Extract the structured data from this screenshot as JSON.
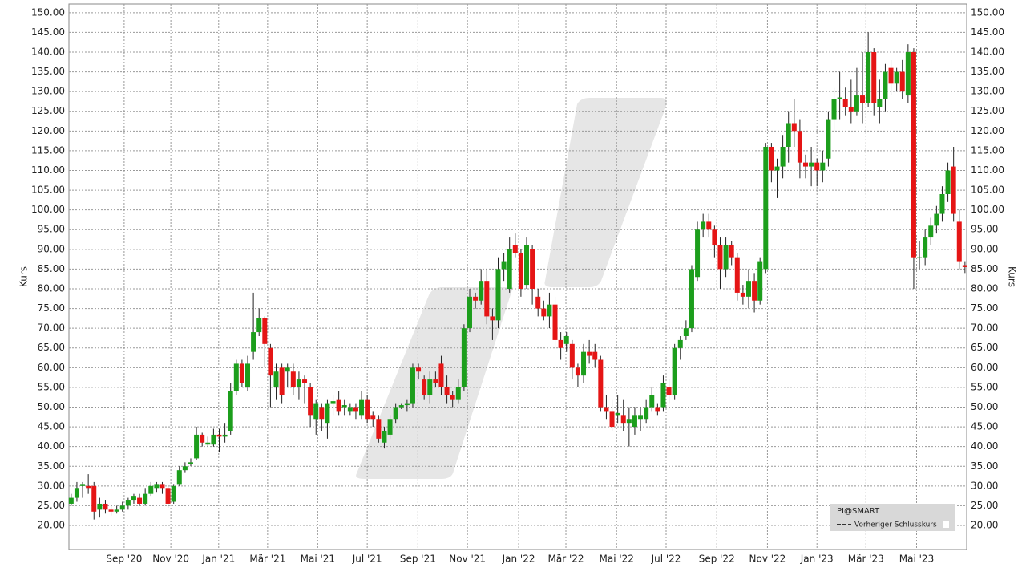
{
  "chart_data": {
    "type": "candlestick",
    "y_label": "Kurs",
    "legend_title": "PI@SMART",
    "legend_item": "Vorheriger Schlusskurs",
    "up_color": "#1c9e1c",
    "down_color": "#e51515",
    "grid": true,
    "xlim": [
      -0.4,
      157.3
    ],
    "ylim": [
      13.9,
      152.2
    ],
    "xticks": [
      {
        "value": 9.3,
        "label": "Sep '20"
      },
      {
        "value": 17.5,
        "label": "Nov '20"
      },
      {
        "value": 25.9,
        "label": "Jan '21"
      },
      {
        "value": 34.5,
        "label": "Mär '21"
      },
      {
        "value": 43.3,
        "label": "Mai '21"
      },
      {
        "value": 52.0,
        "label": "Jul '21"
      },
      {
        "value": 60.9,
        "label": "Sep '21"
      },
      {
        "value": 69.6,
        "label": "Nov '21"
      },
      {
        "value": 78.6,
        "label": "Jan '22"
      },
      {
        "value": 86.9,
        "label": "Mär '22"
      },
      {
        "value": 95.8,
        "label": "Mai '22"
      },
      {
        "value": 104.5,
        "label": "Jul '22"
      },
      {
        "value": 113.4,
        "label": "Sep '22"
      },
      {
        "value": 122.3,
        "label": "Nov '22"
      },
      {
        "value": 131.0,
        "label": "Jan '23"
      },
      {
        "value": 139.6,
        "label": "Mär '23"
      },
      {
        "value": 148.5,
        "label": "Mai '23"
      }
    ],
    "yticks": [
      {
        "value": 20,
        "label": "20.00"
      },
      {
        "value": 25,
        "label": "25.00"
      },
      {
        "value": 30,
        "label": "30.00"
      },
      {
        "value": 35,
        "label": "35.00"
      },
      {
        "value": 40,
        "label": "40.00"
      },
      {
        "value": 45,
        "label": "45.00"
      },
      {
        "value": 50,
        "label": "50.00"
      },
      {
        "value": 55,
        "label": "55.00"
      },
      {
        "value": 60,
        "label": "60.00"
      },
      {
        "value": 65,
        "label": "65.00"
      },
      {
        "value": 70,
        "label": "70.00"
      },
      {
        "value": 75,
        "label": "75.00"
      },
      {
        "value": 80,
        "label": "80.00"
      },
      {
        "value": 85,
        "label": "85.00"
      },
      {
        "value": 90,
        "label": "90.00"
      },
      {
        "value": 95,
        "label": "95.00"
      },
      {
        "value": 100,
        "label": "100.00"
      },
      {
        "value": 105,
        "label": "105.00"
      },
      {
        "value": 110,
        "label": "110.00"
      },
      {
        "value": 115,
        "label": "115.00"
      },
      {
        "value": 120,
        "label": "120.00"
      },
      {
        "value": 125,
        "label": "125.00"
      },
      {
        "value": 130,
        "label": "130.00"
      },
      {
        "value": 135,
        "label": "135.00"
      },
      {
        "value": 140,
        "label": "140.00"
      },
      {
        "value": 145,
        "label": "145.00"
      },
      {
        "value": 150,
        "label": "150.00"
      }
    ],
    "x": [
      0,
      1,
      2,
      3,
      4,
      5,
      6,
      7,
      8,
      9,
      10,
      11,
      12,
      13,
      14,
      15,
      16,
      17,
      18,
      19,
      20,
      21,
      22,
      23,
      24,
      25,
      26,
      27,
      28,
      29,
      30,
      31,
      32,
      33,
      34,
      35,
      36,
      37,
      38,
      39,
      40,
      41,
      42,
      43,
      44,
      45,
      46,
      47,
      48,
      49,
      50,
      51,
      52,
      53,
      54,
      55,
      56,
      57,
      58,
      59,
      60,
      61,
      62,
      63,
      64,
      65,
      66,
      67,
      68,
      69,
      70,
      71,
      72,
      73,
      74,
      75,
      76,
      77,
      78,
      79,
      80,
      81,
      82,
      83,
      84,
      85,
      86,
      87,
      88,
      89,
      90,
      91,
      92,
      93,
      94,
      95,
      96,
      97,
      98,
      99,
      100,
      101,
      102,
      103,
      104,
      105,
      106,
      107,
      108,
      109,
      110,
      111,
      112,
      113,
      114,
      115,
      116,
      117,
      118,
      119,
      120,
      121,
      122,
      123,
      124,
      125,
      126,
      127,
      128,
      129,
      130,
      131,
      132,
      133,
      134,
      135,
      136,
      137,
      138,
      139,
      140,
      141,
      142,
      143,
      144,
      145,
      146,
      147,
      148,
      149,
      150,
      151,
      152,
      153,
      154,
      155,
      156,
      157
    ],
    "open": [
      25.5,
      27,
      30,
      30,
      30,
      24,
      25.5,
      24,
      23.5,
      24,
      25,
      26.5,
      27,
      25.5,
      28,
      29.5,
      30.5,
      29.5,
      26,
      30.5,
      34,
      35.5,
      37,
      43,
      40.5,
      40.5,
      43,
      42.5,
      44,
      54,
      61,
      55,
      64,
      69,
      72.5,
      65,
      55,
      60,
      59,
      59,
      55,
      57,
      55,
      47,
      50,
      46,
      51,
      52,
      50,
      49,
      50,
      48,
      52,
      48,
      47,
      41,
      43,
      47,
      50,
      50.5,
      51,
      60,
      57,
      53,
      57,
      61,
      55,
      53,
      52,
      55,
      70,
      78,
      77,
      82,
      73,
      72,
      85,
      80,
      91,
      89,
      81,
      90,
      78,
      75,
      73,
      76,
      67,
      66,
      66,
      60,
      58,
      64,
      64,
      62,
      50,
      49,
      48,
      48,
      46,
      45,
      47,
      47,
      50,
      50,
      50,
      55,
      53,
      65,
      68,
      70,
      83,
      95,
      97,
      95,
      91,
      85,
      91,
      88,
      79,
      78,
      82,
      77,
      85,
      116,
      110,
      111,
      116,
      122,
      120,
      112,
      111,
      112,
      110,
      113,
      123,
      128,
      128,
      126,
      125,
      129,
      127,
      140,
      126,
      128,
      136,
      132,
      135,
      129,
      140,
      88,
      88,
      93,
      96,
      99,
      104,
      111,
      97,
      86
    ],
    "high": [
      28,
      31,
      31,
      33,
      31,
      27,
      26.5,
      25,
      25,
      26,
      27,
      28,
      28,
      29.5,
      31,
      31,
      31,
      30,
      30.5,
      35,
      36,
      37,
      45,
      43.5,
      42.5,
      44.5,
      44.5,
      46,
      56,
      62,
      62,
      63,
      79,
      75,
      73,
      66,
      61,
      61,
      61,
      61,
      59,
      58,
      56,
      52,
      51,
      52,
      53,
      54,
      52,
      51,
      51,
      54,
      53,
      49,
      48,
      45,
      48,
      51,
      51,
      52,
      61,
      61,
      58,
      59,
      59,
      63,
      58,
      54,
      57,
      71,
      80,
      79,
      85,
      85,
      75,
      88,
      89,
      93,
      94,
      90,
      93,
      91,
      80,
      77,
      79,
      78,
      69,
      69,
      67,
      61,
      66,
      67,
      66,
      63,
      53,
      52,
      53,
      52,
      50,
      50,
      50,
      52,
      55,
      51,
      58,
      57,
      66,
      68,
      72,
      86,
      97,
      99,
      99,
      96,
      93,
      93,
      92,
      89,
      81,
      85,
      84,
      88,
      117,
      117,
      113,
      119,
      125,
      128,
      123,
      114,
      116,
      113,
      115,
      125,
      131,
      135,
      131,
      133,
      136,
      140,
      145,
      141,
      133,
      137,
      138,
      136,
      138,
      142,
      141,
      92,
      95,
      98,
      101,
      106,
      112,
      116,
      100,
      87
    ],
    "low": [
      25,
      26,
      27,
      28,
      21.5,
      22,
      23,
      22.5,
      23,
      23.5,
      24,
      25.5,
      25,
      25,
      27.5,
      28.5,
      28,
      24.5,
      25.5,
      30,
      33.5,
      35,
      36.5,
      40,
      40,
      40,
      38.5,
      41,
      43,
      53,
      55,
      54,
      62,
      68,
      60,
      50,
      52,
      51,
      55,
      53,
      52,
      51,
      45,
      43,
      44,
      42,
      48,
      48,
      48,
      48,
      47,
      47,
      46,
      45,
      41,
      39.5,
      42,
      46,
      49.5,
      49,
      50,
      57,
      52,
      51,
      55,
      53,
      51,
      50,
      51,
      54,
      69,
      75,
      76,
      71,
      67,
      70,
      82,
      79,
      88,
      78,
      80,
      76,
      73,
      72,
      70,
      65,
      62,
      64,
      57,
      55,
      56,
      61,
      60,
      49,
      47,
      44,
      46,
      44,
      40,
      43,
      44,
      46,
      49,
      48,
      49,
      51,
      52,
      62,
      67,
      69,
      82,
      93,
      93,
      88,
      80,
      83,
      86,
      77,
      76,
      75,
      74,
      76,
      84,
      107,
      103,
      108,
      112,
      116,
      108,
      108,
      106,
      106,
      107,
      111,
      120,
      123,
      124,
      122,
      124,
      122,
      126,
      124,
      122,
      125,
      129,
      130,
      128,
      127,
      80,
      85,
      86,
      91,
      94,
      97,
      102,
      97,
      85,
      84
    ],
    "close": [
      27,
      29.5,
      30.5,
      29.5,
      23.5,
      25.5,
      24,
      23.5,
      24,
      25,
      26.5,
      27.5,
      25.5,
      28,
      30,
      30.5,
      29.5,
      25.5,
      30,
      34,
      35,
      36,
      43,
      41,
      41,
      43,
      42.5,
      43,
      54,
      61,
      56,
      61,
      69,
      72.5,
      66,
      58,
      59,
      53,
      60,
      55,
      57,
      56,
      48,
      51,
      47,
      51,
      51.5,
      49,
      50.5,
      50,
      49,
      52,
      47,
      47,
      42,
      44,
      47,
      50,
      50.5,
      51,
      60,
      59,
      53,
      57,
      56,
      55,
      53,
      52,
      55,
      70,
      78,
      77,
      82,
      73,
      72,
      85,
      87,
      90,
      89,
      80,
      91,
      80,
      75,
      73,
      76,
      67,
      65,
      68,
      60,
      58,
      64,
      63,
      62,
      50,
      49,
      45,
      48.5,
      46,
      47,
      48,
      48,
      50,
      53,
      49,
      56,
      53,
      65,
      67,
      70,
      85,
      95,
      97,
      95,
      91,
      85,
      91,
      88,
      79,
      78,
      82,
      77,
      87,
      116,
      110,
      111,
      116,
      122,
      120,
      112,
      111,
      112,
      110,
      112,
      123,
      128,
      128.5,
      126,
      125,
      129,
      127,
      140,
      127,
      128,
      135,
      132,
      135,
      130,
      140,
      88,
      88,
      93,
      96,
      99,
      104,
      110,
      99,
      87,
      85.5
    ]
  }
}
